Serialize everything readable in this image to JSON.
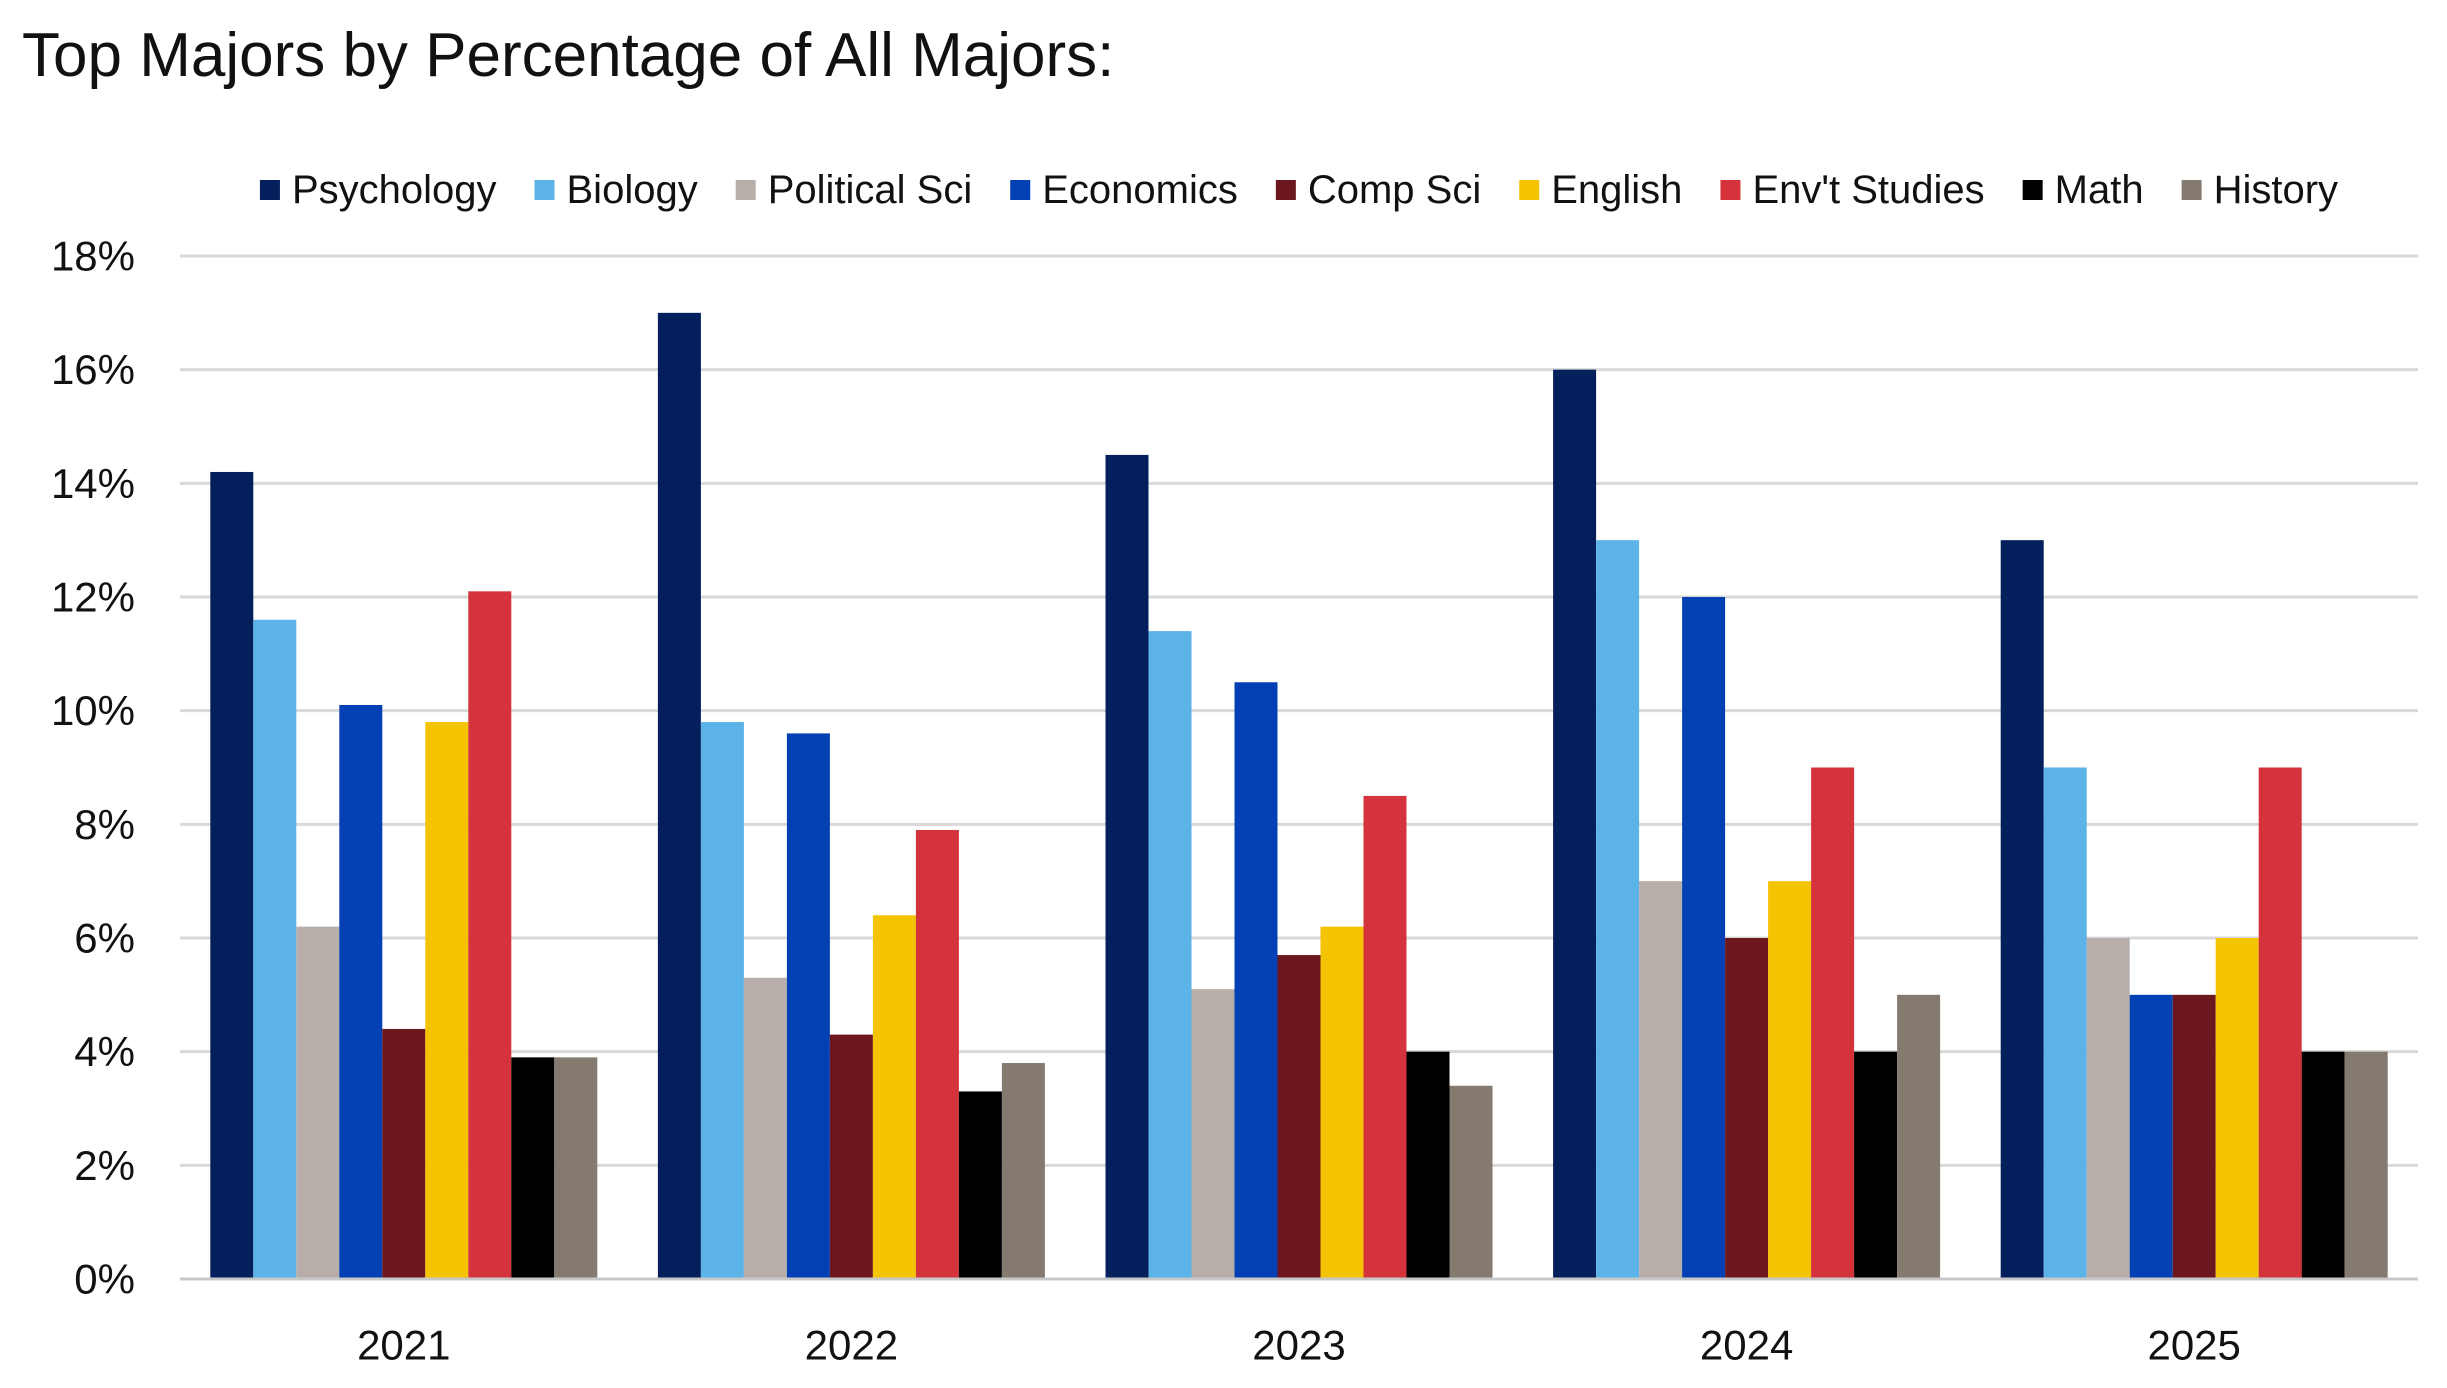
{
  "chart_data": {
    "type": "bar",
    "title": "Top Majors by Percentage of All Majors:",
    "xlabel": "",
    "ylabel": "",
    "categories": [
      "2021",
      "2022",
      "2023",
      "2024",
      "2025"
    ],
    "ylim": [
      0,
      18
    ],
    "yticks": [
      0,
      2,
      4,
      6,
      8,
      10,
      12,
      14,
      16,
      18
    ],
    "ytick_labels": [
      "0%",
      "2%",
      "4%",
      "6%",
      "8%",
      "10%",
      "12%",
      "14%",
      "16%",
      "18%"
    ],
    "grid": true,
    "legend_position": "top",
    "series": [
      {
        "name": "Psychology",
        "color": "#03205c",
        "values": [
          14.2,
          17.0,
          14.5,
          16.0,
          13.0
        ]
      },
      {
        "name": "Biology",
        "color": "#5cb3e8",
        "values": [
          11.6,
          9.8,
          11.4,
          13.0,
          9.0
        ]
      },
      {
        "name": "Political Sci",
        "color": "#b7aea9",
        "values": [
          6.2,
          5.3,
          5.1,
          7.0,
          6.0
        ]
      },
      {
        "name": "Economics",
        "color": "#0340b3",
        "values": [
          10.1,
          9.6,
          10.5,
          12.0,
          5.0
        ]
      },
      {
        "name": "Comp Sci",
        "color": "#6b171d",
        "values": [
          4.4,
          4.3,
          5.7,
          6.0,
          5.0
        ]
      },
      {
        "name": "English",
        "color": "#f4c302",
        "values": [
          9.8,
          6.4,
          6.2,
          7.0,
          6.0
        ]
      },
      {
        "name": "Env't Studies",
        "color": "#d4333b",
        "values": [
          12.1,
          7.9,
          8.5,
          9.0,
          9.0
        ]
      },
      {
        "name": "Math",
        "color": "#000000",
        "values": [
          3.9,
          3.3,
          4.0,
          4.0,
          4.0
        ]
      },
      {
        "name": "History",
        "color": "#857a70",
        "values": [
          3.9,
          3.8,
          3.4,
          5.0,
          4.0
        ]
      }
    ]
  }
}
